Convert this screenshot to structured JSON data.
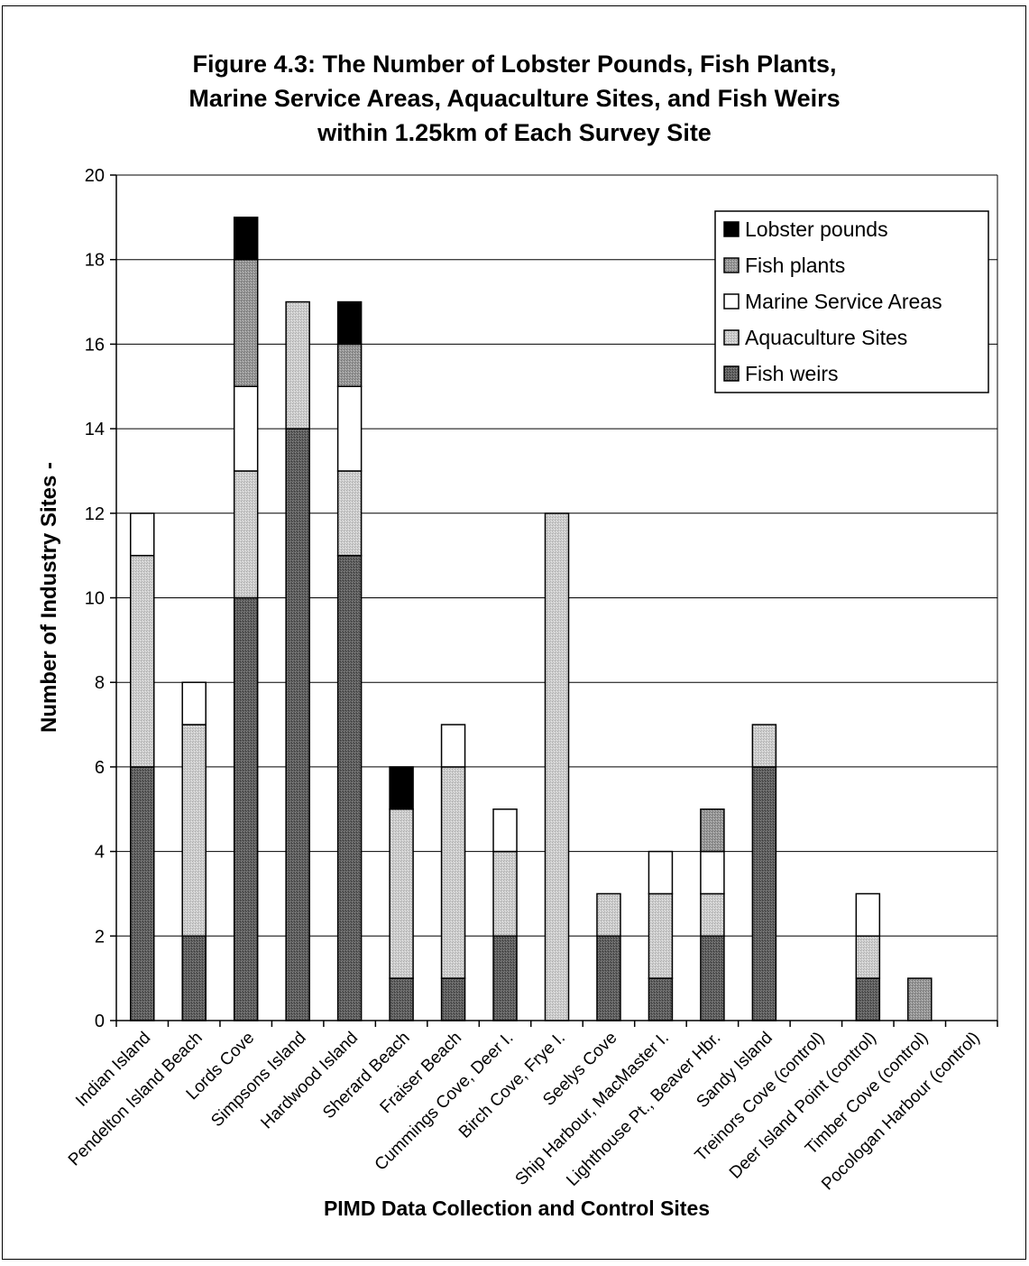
{
  "chart_data": {
    "type": "bar",
    "stacked": true,
    "title_lines": [
      "Figure 4.3: The Number of Lobster Pounds, Fish Plants,",
      "Marine Service Areas, Aquaculture Sites, and Fish Weirs",
      "within 1.25km of Each Survey Site"
    ],
    "xlabel": "PIMD Data Collection and Control Sites",
    "ylabel": "Number of Industry Sites -",
    "ylim": [
      0,
      20
    ],
    "yticks": [
      0,
      2,
      4,
      6,
      8,
      10,
      12,
      14,
      16,
      18,
      20
    ],
    "grid": true,
    "legend_position": "top-right",
    "categories": [
      "Indian Island",
      "Pendelton Island Beach",
      "Lords Cove",
      "Simpsons Island",
      "Hardwood Island",
      "Sherard Beach",
      "Fraiser Beach",
      "Cummings Cove,  Deer I.",
      "Birch Cove, Frye I.",
      "Seelys Cove",
      "Ship Harbour, MacMaster I.",
      "Lighthouse Pt., Beaver Hbr.",
      "Sandy Island",
      "Treinors Cove (control)",
      "Deer Island Point (control)",
      "Timber Cove (control)",
      "Pocologan Harbour (control)"
    ],
    "series": [
      {
        "name": "Fish weirs",
        "color": "#5a5a5a",
        "values": [
          6,
          2,
          10,
          14,
          11,
          1,
          1,
          2,
          0,
          2,
          1,
          2,
          6,
          0,
          1,
          0,
          0
        ]
      },
      {
        "name": "Aquaculture Sites",
        "color": "#c6c6c6",
        "values": [
          5,
          5,
          3,
          3,
          2,
          4,
          5,
          2,
          12,
          1,
          2,
          1,
          1,
          0,
          1,
          0,
          0
        ]
      },
      {
        "name": "Marine Service Areas",
        "color": "#ffffff",
        "values": [
          1,
          1,
          2,
          0,
          2,
          0,
          1,
          1,
          0,
          0,
          1,
          1,
          0,
          0,
          1,
          0,
          0
        ]
      },
      {
        "name": "Fish plants",
        "color": "#8f8f8f",
        "values": [
          0,
          0,
          3,
          0,
          1,
          0,
          0,
          0,
          0,
          0,
          0,
          1,
          0,
          0,
          0,
          1,
          0
        ]
      },
      {
        "name": "Lobster pounds",
        "color": "#000000",
        "values": [
          0,
          0,
          1,
          0,
          1,
          1,
          0,
          0,
          0,
          0,
          0,
          0,
          0,
          0,
          0,
          0,
          0
        ]
      }
    ],
    "legend_order": [
      "Lobster pounds",
      "Fish plants",
      "Marine Service Areas",
      "Aquaculture Sites",
      "Fish weirs"
    ]
  }
}
